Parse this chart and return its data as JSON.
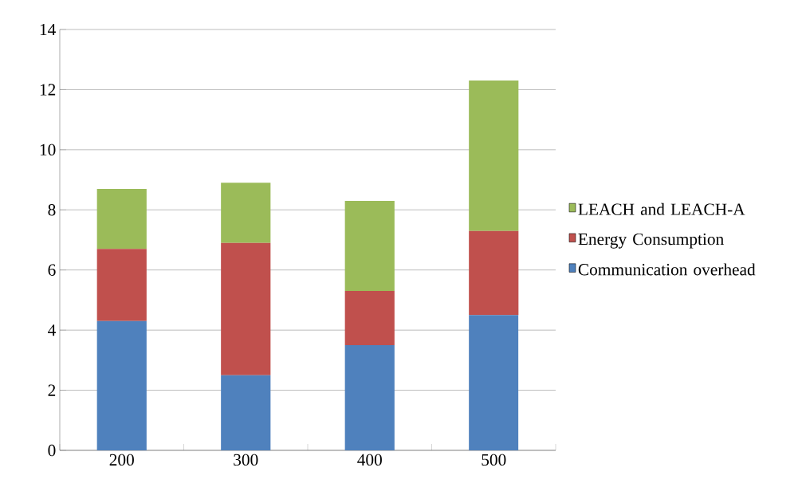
{
  "chart_data": {
    "type": "bar",
    "stacked": true,
    "categories": [
      "200",
      "300",
      "400",
      "500"
    ],
    "series": [
      {
        "name": "Communication overhead",
        "color": "#4f81bd",
        "values": [
          4.3,
          2.5,
          3.5,
          4.5
        ]
      },
      {
        "name": "Energy Consumption",
        "color": "#c0504d",
        "values": [
          2.4,
          4.4,
          1.8,
          2.8
        ]
      },
      {
        "name": "LEACH and LEACH-A",
        "color": "#9bbb59",
        "values": [
          2.0,
          2.0,
          3.0,
          5.0
        ]
      }
    ],
    "ylim": [
      0,
      14
    ],
    "yticks": [
      0,
      2,
      4,
      6,
      8,
      10,
      12,
      14
    ],
    "grid": "y",
    "legend": "right"
  }
}
